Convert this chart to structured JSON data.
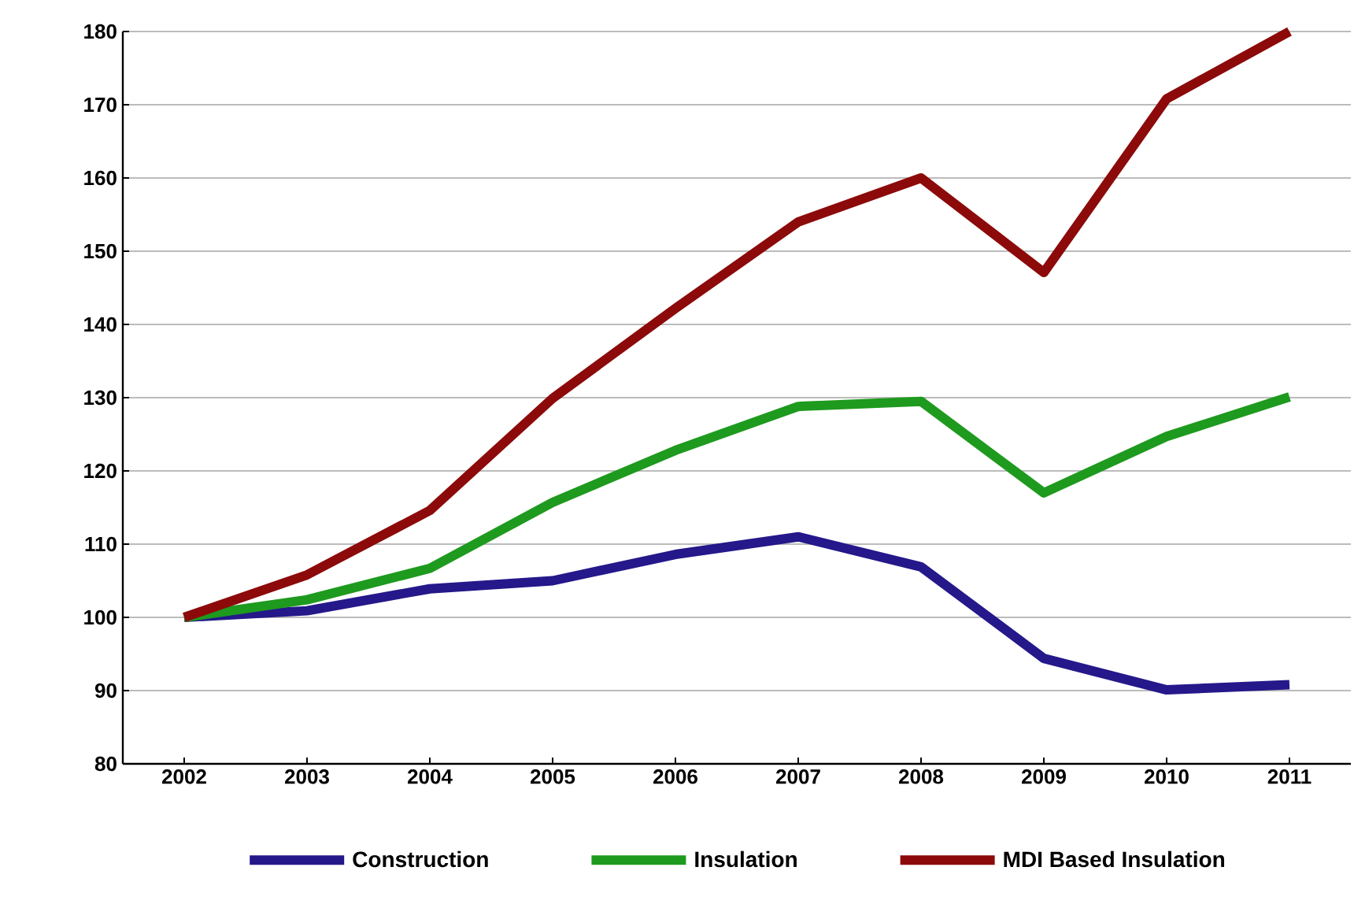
{
  "chart_data": {
    "type": "line",
    "categories": [
      "2002",
      "2003",
      "2004",
      "2005",
      "2006",
      "2007",
      "2008",
      "2009",
      "2010",
      "2011"
    ],
    "series": [
      {
        "name": "Construction",
        "color": "#24188a",
        "values": [
          100,
          100.9,
          103.9,
          105,
          108.6,
          111,
          106.9,
          94.4,
          90.1,
          90.8
        ]
      },
      {
        "name": "Insulation",
        "color": "#1e9a1e",
        "values": [
          100,
          102.4,
          106.7,
          115.7,
          122.8,
          128.8,
          129.5,
          117,
          124.7,
          130.1
        ]
      },
      {
        "name": "MDI Based Insulation",
        "color": "#8c0a0a",
        "values": [
          100,
          105.8,
          114.6,
          129.9,
          142.2,
          154,
          160,
          147.1,
          170.8,
          180
        ]
      }
    ],
    "ylim": [
      80,
      180
    ],
    "yticks": [
      80,
      90,
      100,
      110,
      120,
      130,
      140,
      150,
      160,
      170,
      180
    ],
    "grid": "y",
    "legend": "bottom",
    "marker": "none",
    "line_style": "solid"
  }
}
